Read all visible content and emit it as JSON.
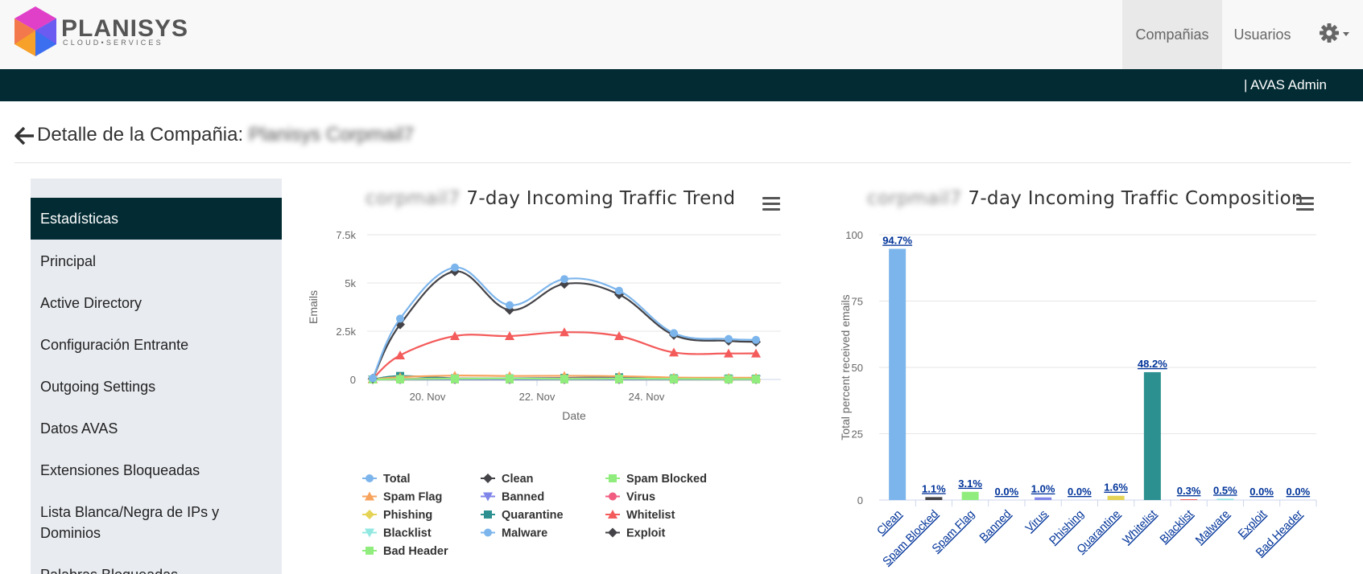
{
  "header": {
    "logo_text": "PLANISYS",
    "logo_subtext": "CLOUD•SERVICES",
    "nav": [
      {
        "label": "Compañias"
      },
      {
        "label": "Usuarios"
      }
    ],
    "user_label": "| AVAS Admin"
  },
  "page": {
    "title": "Detalle de la Compañia:",
    "company_name": "Planisys Corpmail7"
  },
  "sidebar": {
    "items": [
      {
        "label": "Estadísticas",
        "active": true
      },
      {
        "label": "Principal"
      },
      {
        "label": "Active Directory"
      },
      {
        "label": "Configuración Entrante"
      },
      {
        "label": "Outgoing Settings"
      },
      {
        "label": "Datos AVAS"
      },
      {
        "label": "Extensiones Bloqueadas"
      },
      {
        "label": "Lista Blanca/Negra de IPs y Dominios"
      },
      {
        "label": "Palabras Bloqueadas"
      }
    ]
  },
  "trend": {
    "title_prefix": "corpmail7",
    "title": "7-day Incoming Traffic Trend",
    "xlabel": "Date",
    "ylabel": "Emails"
  },
  "composition": {
    "title_prefix": "corpmail7",
    "title": "7-day Incoming Traffic Composition",
    "ylabel": "Total percent received emails"
  },
  "chart_data": [
    {
      "type": "line",
      "title": "7-day Incoming Traffic Trend",
      "xlabel": "Date",
      "ylabel": "Emails",
      "ylim": [
        0,
        7500
      ],
      "yticks": [
        "0",
        "2.5k",
        "5k",
        "7.5k"
      ],
      "xticks": [
        "20. Nov",
        "22. Nov",
        "24. Nov"
      ],
      "x": [
        "2024-11-19",
        "2024-11-19 12:00",
        "2024-11-20 12:00",
        "2024-11-21 12:00",
        "2024-11-22 12:00",
        "2024-11-23 12:00",
        "2024-11-24 12:00",
        "2024-11-25 12:00",
        "2024-11-26"
      ],
      "legend_position": "bottom",
      "series": [
        {
          "name": "Total",
          "color": "#7cb5ec",
          "marker": "circle",
          "values": [
            60,
            3150,
            5800,
            3850,
            5200,
            4600,
            2400,
            2100,
            2050
          ]
        },
        {
          "name": "Clean",
          "color": "#434348",
          "marker": "diamond",
          "values": [
            50,
            2850,
            5600,
            3600,
            4950,
            4400,
            2300,
            2000,
            1950
          ]
        },
        {
          "name": "Spam Blocked",
          "color": "#90ed7d",
          "marker": "square",
          "values": [
            0,
            20,
            40,
            50,
            30,
            40,
            30,
            20,
            20
          ]
        },
        {
          "name": "Spam Flag",
          "color": "#f7a35c",
          "marker": "triangle",
          "values": [
            0,
            120,
            200,
            180,
            190,
            170,
            100,
            90,
            90
          ]
        },
        {
          "name": "Banned",
          "color": "#8085e9",
          "marker": "triangle-down",
          "values": [
            0,
            0,
            0,
            0,
            0,
            0,
            0,
            0,
            0
          ]
        },
        {
          "name": "Virus",
          "color": "#f15c80",
          "marker": "circle",
          "values": [
            0,
            30,
            50,
            40,
            60,
            50,
            30,
            30,
            20
          ]
        },
        {
          "name": "Phishing",
          "color": "#e4d354",
          "marker": "diamond",
          "values": [
            0,
            0,
            0,
            0,
            0,
            0,
            0,
            0,
            0
          ]
        },
        {
          "name": "Quarantine",
          "color": "#2b908f",
          "marker": "square",
          "values": [
            0,
            180,
            60,
            60,
            80,
            110,
            60,
            50,
            40
          ]
        },
        {
          "name": "Whitelist",
          "color": "#f45b5b",
          "marker": "triangle",
          "values": [
            40,
            1250,
            2250,
            2250,
            2450,
            2250,
            1400,
            1350,
            1350
          ]
        },
        {
          "name": "Blacklist",
          "color": "#91e8e1",
          "marker": "triangle-down",
          "values": [
            0,
            10,
            20,
            10,
            10,
            10,
            10,
            10,
            10
          ]
        },
        {
          "name": "Malware",
          "color": "#7cb5ec",
          "marker": "circle",
          "values": [
            0,
            10,
            20,
            20,
            20,
            20,
            10,
            10,
            10
          ]
        },
        {
          "name": "Exploit",
          "color": "#434348",
          "marker": "diamond",
          "values": [
            0,
            0,
            0,
            0,
            0,
            0,
            0,
            0,
            0
          ]
        },
        {
          "name": "Bad Header",
          "color": "#90ed7d",
          "marker": "square",
          "values": [
            0,
            0,
            0,
            0,
            0,
            0,
            0,
            0,
            0
          ]
        }
      ]
    },
    {
      "type": "bar",
      "title": "7-day Incoming Traffic Composition",
      "ylabel": "Total percent received emails",
      "ylim": [
        0,
        100
      ],
      "yticks": [
        "0",
        "25",
        "50",
        "75",
        "100"
      ],
      "categories": [
        "Clean",
        "Spam Blocked",
        "Spam Flag",
        "Banned",
        "Virus",
        "Phishing",
        "Quarantine",
        "Whitelist",
        "Blacklist",
        "Malware",
        "Exploit",
        "Bad Header"
      ],
      "values": [
        94.7,
        1.1,
        3.1,
        0.0,
        1.0,
        0.0,
        1.6,
        48.2,
        0.3,
        0.5,
        0.0,
        0.0
      ],
      "labels": [
        "94.7%",
        "1.1%",
        "3.1%",
        "0.0%",
        "1.0%",
        "0.0%",
        "1.6%",
        "48.2%",
        "0.3%",
        "0.5%",
        "0.0%",
        "0.0%"
      ],
      "colors": [
        "#7cb5ec",
        "#434348",
        "#90ed7d",
        "#f7a35c",
        "#8085e9",
        "#f15c80",
        "#e4d354",
        "#2b908f",
        "#f45b5b",
        "#91e8e1",
        "#7cb5ec",
        "#434348"
      ]
    }
  ]
}
